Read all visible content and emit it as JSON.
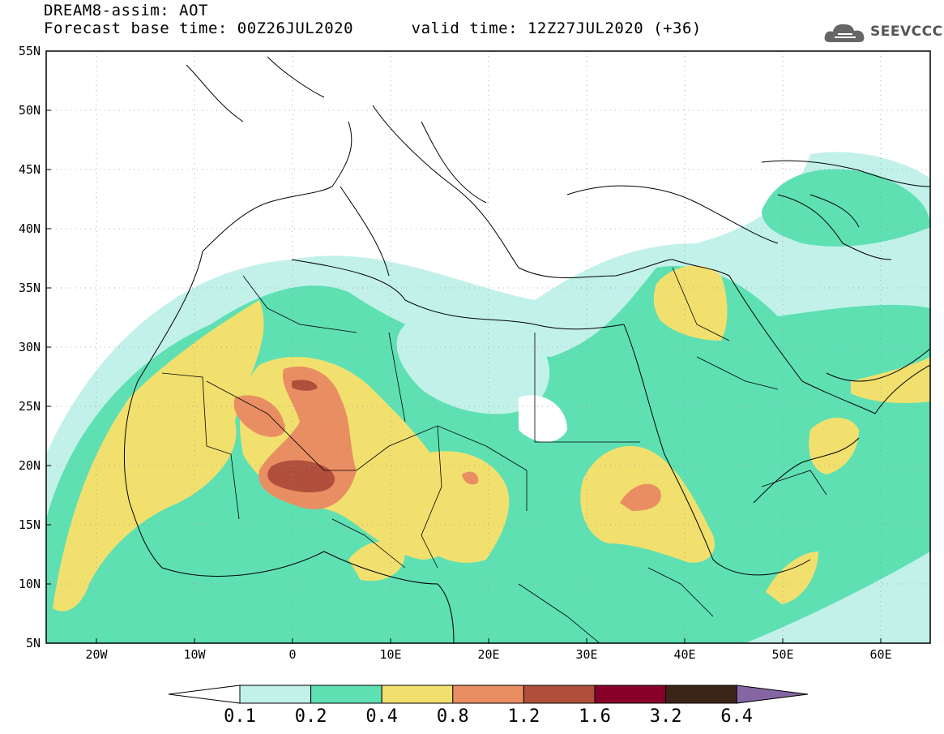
{
  "header": {
    "line1": "DREAM8-assim: AOT",
    "line2": "Forecast base time: 00Z26JUL2020      valid time: 12Z27JUL2020 (+36)"
  },
  "logo": {
    "text": "SEEVCCC",
    "icon": "cloud-icon"
  },
  "map": {
    "lon_range": [
      -25,
      65
    ],
    "lat_range": [
      5,
      55
    ],
    "lat_labels": [
      "55N",
      "50N",
      "45N",
      "40N",
      "35N",
      "30N",
      "25N",
      "20N",
      "15N",
      "10N",
      "5N"
    ],
    "lon_labels": [
      "20W",
      "10W",
      "0",
      "10E",
      "20E",
      "30E",
      "40E",
      "50E",
      "60E"
    ]
  },
  "colorbar": {
    "labels": [
      "0.1",
      "0.2",
      "0.4",
      "0.8",
      "1.2",
      "1.6",
      "3.2",
      "6.4"
    ],
    "colors": [
      "#ffffff",
      "#c2f1ea",
      "#5ee0b3",
      "#f1e06e",
      "#e98e63",
      "#b04f3c",
      "#86002a",
      "#3d2418",
      "#8566a3"
    ]
  }
}
